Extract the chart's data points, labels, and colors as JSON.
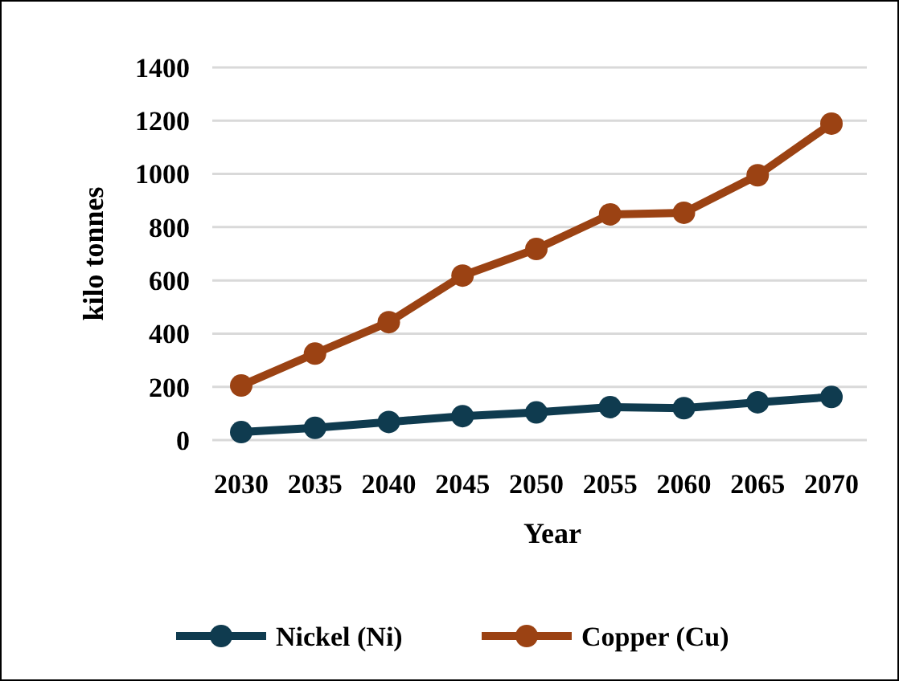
{
  "chart_data": {
    "type": "line",
    "xlabel": "Year",
    "ylabel": "kilo tonnes",
    "categories": [
      "2030",
      "2035",
      "2040",
      "2045",
      "2050",
      "2055",
      "2060",
      "2065",
      "2070"
    ],
    "series": [
      {
        "name": "Nickel (Ni)",
        "color": "#0f3b4f",
        "values": [
          30,
          46,
          68,
          90,
          104,
          124,
          120,
          142,
          162
        ]
      },
      {
        "name": "Copper (Cu)",
        "color": "#9b4213",
        "values": [
          205,
          325,
          443,
          618,
          718,
          848,
          854,
          995,
          1189
        ]
      }
    ],
    "ylim": [
      0,
      1400
    ],
    "yticks": [
      0,
      200,
      400,
      600,
      800,
      1000,
      1200,
      1400
    ],
    "grid": "y",
    "legend": "bottom",
    "marker": "circle"
  }
}
